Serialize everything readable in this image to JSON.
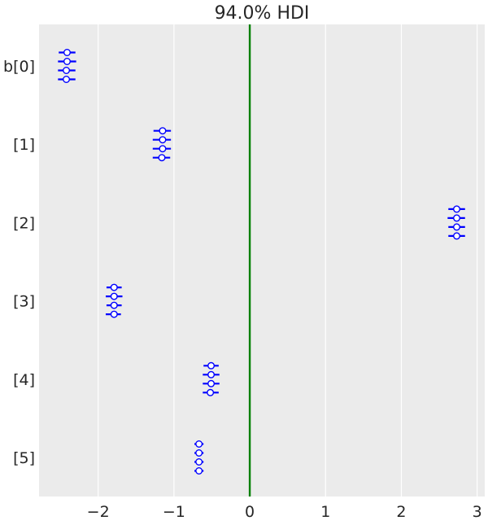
{
  "chart_data": {
    "type": "forest",
    "title": "94.0% HDI",
    "xlabel": "",
    "ylabel": "",
    "xlim": [
      -2.78,
      3.1
    ],
    "xticks": [
      -2,
      -1,
      0,
      1,
      2,
      3
    ],
    "xtick_labels": [
      "−2",
      "−1",
      "0",
      "1",
      "2",
      "3"
    ],
    "grid": true,
    "reference_line": {
      "x": 0,
      "color": "#008000"
    },
    "colors": {
      "background": "#ebebeb",
      "grid": "#ffffff",
      "marker": "#0000ff"
    },
    "chains": 4,
    "parameters": [
      {
        "label": "b[0]",
        "chains": [
          {
            "mean": -2.41,
            "hdi": [
              -2.52,
              -2.3
            ]
          },
          {
            "mean": -2.41,
            "hdi": [
              -2.53,
              -2.29
            ]
          },
          {
            "mean": -2.42,
            "hdi": [
              -2.53,
              -2.3
            ]
          },
          {
            "mean": -2.42,
            "hdi": [
              -2.53,
              -2.3
            ]
          }
        ]
      },
      {
        "label": "[1]",
        "chains": [
          {
            "mean": -1.15,
            "hdi": [
              -1.27,
              -1.04
            ]
          },
          {
            "mean": -1.15,
            "hdi": [
              -1.28,
              -1.04
            ]
          },
          {
            "mean": -1.15,
            "hdi": [
              -1.28,
              -1.04
            ]
          },
          {
            "mean": -1.16,
            "hdi": [
              -1.28,
              -1.05
            ]
          }
        ]
      },
      {
        "label": "[2]",
        "chains": [
          {
            "mean": 2.73,
            "hdi": [
              2.62,
              2.84
            ]
          },
          {
            "mean": 2.73,
            "hdi": [
              2.61,
              2.84
            ]
          },
          {
            "mean": 2.73,
            "hdi": [
              2.62,
              2.84
            ]
          },
          {
            "mean": 2.73,
            "hdi": [
              2.62,
              2.84
            ]
          }
        ]
      },
      {
        "label": "[3]",
        "chains": [
          {
            "mean": -1.79,
            "hdi": [
              -1.89,
              -1.69
            ]
          },
          {
            "mean": -1.79,
            "hdi": [
              -1.9,
              -1.68
            ]
          },
          {
            "mean": -1.79,
            "hdi": [
              -1.89,
              -1.69
            ]
          },
          {
            "mean": -1.79,
            "hdi": [
              -1.9,
              -1.7
            ]
          }
        ]
      },
      {
        "label": "[4]",
        "chains": [
          {
            "mean": -0.51,
            "hdi": [
              -0.61,
              -0.41
            ]
          },
          {
            "mean": -0.51,
            "hdi": [
              -0.62,
              -0.4
            ]
          },
          {
            "mean": -0.51,
            "hdi": [
              -0.62,
              -0.4
            ]
          },
          {
            "mean": -0.52,
            "hdi": [
              -0.62,
              -0.41
            ]
          }
        ]
      },
      {
        "label": "[5]",
        "chains": [
          {
            "mean": -0.67,
            "hdi": [
              -0.73,
              -0.61
            ]
          },
          {
            "mean": -0.67,
            "hdi": [
              -0.73,
              -0.61
            ]
          },
          {
            "mean": -0.67,
            "hdi": [
              -0.73,
              -0.61
            ]
          },
          {
            "mean": -0.67,
            "hdi": [
              -0.73,
              -0.61
            ]
          }
        ]
      }
    ]
  }
}
